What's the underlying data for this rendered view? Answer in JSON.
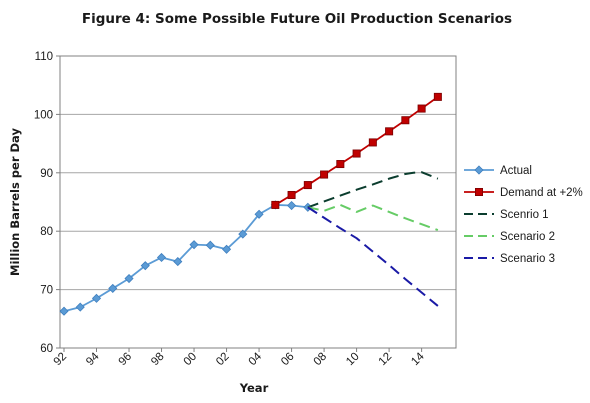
{
  "chart_data": {
    "type": "line",
    "title": "Figure 4: Some Possible Future Oil Production Scenarios",
    "xlabel": "Year",
    "ylabel": "Million Barrels per Day",
    "ylim": [
      60,
      110
    ],
    "xlim": [
      1992,
      2015.5
    ],
    "yticks": [
      "60",
      "70",
      "80",
      "90",
      "100",
      "110"
    ],
    "xticks": [
      {
        "x": 1992,
        "label": "92"
      },
      {
        "x": 1994,
        "label": "94"
      },
      {
        "x": 1996,
        "label": "96"
      },
      {
        "x": 1998,
        "label": "98"
      },
      {
        "x": 2000,
        "label": "00"
      },
      {
        "x": 2002,
        "label": "02"
      },
      {
        "x": 2004,
        "label": "04"
      },
      {
        "x": 2006,
        "label": "06"
      },
      {
        "x": 2008,
        "label": "08"
      },
      {
        "x": 2010,
        "label": "10"
      },
      {
        "x": 2012,
        "label": "12"
      },
      {
        "x": 2014,
        "label": "14"
      }
    ],
    "grid": true,
    "legend_position": "right",
    "series": [
      {
        "name": "Actual",
        "color": "#5b9bd5",
        "style": "solid",
        "marker": "diamond",
        "x": [
          1992,
          1993,
          1994,
          1995,
          1996,
          1997,
          1998,
          1999,
          2000,
          2001,
          2002,
          2003,
          2004,
          2005,
          2006,
          2007
        ],
        "values": [
          66.3,
          67.0,
          68.5,
          70.2,
          71.9,
          74.1,
          75.5,
          74.8,
          77.7,
          77.6,
          76.9,
          79.5,
          82.9,
          84.5,
          84.4,
          84.1
        ]
      },
      {
        "name": "Demand at +2%",
        "color": "#c00000",
        "style": "solid",
        "marker": "square",
        "x": [
          2005,
          2006,
          2007,
          2008,
          2009,
          2010,
          2011,
          2012,
          2013,
          2014,
          2015
        ],
        "values": [
          84.5,
          86.2,
          87.9,
          89.7,
          91.5,
          93.3,
          95.2,
          97.1,
          99.0,
          101.0,
          103.0
        ]
      },
      {
        "name": "Scenrio 1",
        "color": "#0b3d2e",
        "style": "dashed",
        "marker": "none",
        "x": [
          2007,
          2008,
          2009,
          2010,
          2011,
          2012,
          2013,
          2013.5,
          2014,
          2015
        ],
        "values": [
          84.1,
          85.1,
          86.1,
          87.1,
          88.0,
          89.0,
          89.8,
          90.0,
          90.1,
          89.0
        ]
      },
      {
        "name": "Scenario 2",
        "color": "#66cc66",
        "style": "dashed",
        "marker": "none",
        "x": [
          2007,
          2008,
          2009,
          2010,
          2011,
          2012,
          2013,
          2014,
          2015
        ],
        "values": [
          84.1,
          83.5,
          84.5,
          83.3,
          84.4,
          83.3,
          82.2,
          81.2,
          80.2
        ]
      },
      {
        "name": "Scenario 3",
        "color": "#1a1aa6",
        "style": "dashed",
        "marker": "none",
        "x": [
          2007,
          2008,
          2009,
          2010,
          2011,
          2012,
          2013,
          2014,
          2015
        ],
        "values": [
          84.1,
          82.3,
          80.5,
          78.8,
          76.5,
          74.2,
          71.8,
          69.5,
          67.2
        ]
      }
    ]
  }
}
